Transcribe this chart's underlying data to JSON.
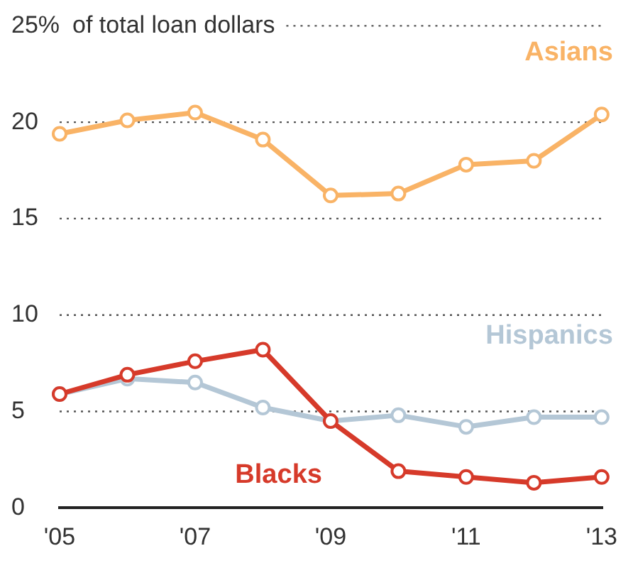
{
  "chart_data": {
    "type": "line",
    "categories": [
      "'05",
      null,
      "'07",
      null,
      "'09",
      null,
      "'11",
      null,
      "'13"
    ],
    "series": [
      {
        "name": "Asians",
        "color": "#f9b366",
        "values": [
          19.4,
          20.1,
          20.5,
          19.1,
          16.2,
          16.3,
          17.8,
          18.0,
          20.4
        ]
      },
      {
        "name": "Hispanics",
        "color": "#b4c7d6",
        "values": [
          5.9,
          6.7,
          6.5,
          5.2,
          4.5,
          4.8,
          4.2,
          4.7,
          4.7
        ]
      },
      {
        "name": "Blacks",
        "color": "#d63a2a",
        "values": [
          5.9,
          6.9,
          7.6,
          8.2,
          4.5,
          1.9,
          1.6,
          1.3,
          1.6
        ]
      }
    ],
    "ylim": [
      0,
      25
    ],
    "yticks": [
      0,
      5,
      10,
      15,
      20,
      {
        "value": 25,
        "label": "25%"
      }
    ],
    "ylabel": "of total loan dollars",
    "grid": "y",
    "marker": "circle",
    "line_style": "solid",
    "legend": false
  }
}
